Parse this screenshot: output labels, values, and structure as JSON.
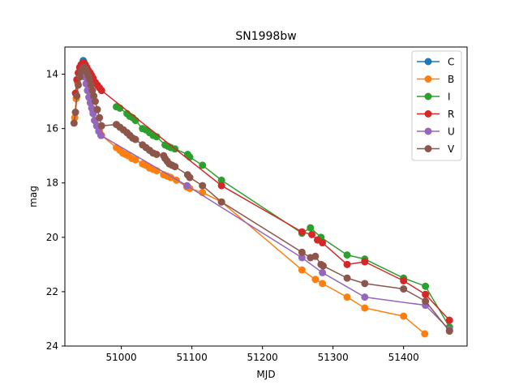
{
  "chart_data": {
    "type": "line",
    "title": "SN1998bw",
    "xlabel": "MJD",
    "ylabel": "mag",
    "xlim": [
      50920,
      51490
    ],
    "ylim": [
      24,
      13
    ],
    "y_inverted": true,
    "grid": false,
    "legend_position": "top-right",
    "x_ticks": [
      51000,
      51100,
      51200,
      51300,
      51400
    ],
    "x_tick_labels": [
      "51000",
      "51100",
      "51200",
      "51300",
      "51400"
    ],
    "y_ticks": [
      14,
      16,
      18,
      20,
      22,
      24
    ],
    "y_tick_labels": [
      "14",
      "16",
      "18",
      "20",
      "22",
      "24"
    ],
    "series": [
      {
        "name": "C",
        "color": "#1f77b4",
        "x": [
          50945,
          50946,
          50947,
          50948
        ],
        "y": [
          13.6,
          13.5,
          13.55,
          13.7
        ]
      },
      {
        "name": "B",
        "color": "#ff7f0e",
        "x": [
          50934,
          50936,
          50938,
          50940,
          50942,
          50944,
          50946,
          50948,
          50950,
          50952,
          50954,
          50956,
          50958,
          50960,
          50963,
          50966,
          50969,
          50972,
          50993,
          50998,
          51002,
          51006,
          51010,
          51015,
          51020,
          51030,
          51035,
          51040,
          51045,
          51050,
          51060,
          51065,
          51070,
          51078,
          51093,
          51097,
          51115,
          51142,
          51256,
          51275,
          51285,
          51320,
          51345,
          51400,
          51430
        ],
        "y": [
          15.6,
          14.9,
          14.3,
          14.0,
          13.85,
          13.8,
          13.85,
          13.95,
          14.1,
          14.3,
          14.5,
          14.75,
          15.0,
          15.4,
          15.7,
          15.9,
          16.1,
          16.25,
          16.7,
          16.8,
          16.9,
          16.95,
          17.0,
          17.1,
          17.15,
          17.3,
          17.35,
          17.45,
          17.5,
          17.55,
          17.7,
          17.75,
          17.8,
          17.9,
          18.15,
          18.2,
          18.35,
          18.7,
          21.2,
          21.55,
          21.7,
          22.2,
          22.6,
          22.9,
          23.55
        ]
      },
      {
        "name": "I",
        "color": "#2ca02c",
        "x": [
          50993,
          50998,
          51008,
          51012,
          51016,
          51020,
          51030,
          51035,
          51040,
          51045,
          51050,
          51062,
          51066,
          51070,
          51076,
          51094,
          51097,
          51115,
          51142,
          51256,
          51268,
          51283,
          51320,
          51345,
          51400,
          51431,
          51465
        ],
        "y": [
          15.2,
          15.25,
          15.45,
          15.55,
          15.6,
          15.7,
          16.0,
          16.05,
          16.15,
          16.25,
          16.3,
          16.6,
          16.65,
          16.7,
          16.75,
          16.95,
          17.05,
          17.35,
          17.9,
          19.85,
          19.65,
          20.0,
          20.65,
          20.8,
          21.5,
          21.8,
          23.3
        ]
      },
      {
        "name": "R",
        "color": "#d62728",
        "x": [
          50935,
          50937,
          50939,
          50941,
          50943,
          50945,
          50947,
          50949,
          50951,
          50953,
          50956,
          50958,
          50960,
          50963,
          50966,
          50969,
          50972,
          51142,
          51256,
          51270,
          51278,
          51285,
          51320,
          51345,
          51400,
          51431,
          51465
        ],
        "y": [
          14.7,
          14.2,
          13.95,
          13.75,
          13.65,
          13.6,
          13.6,
          13.65,
          13.75,
          13.85,
          13.95,
          14.05,
          14.15,
          14.3,
          14.4,
          14.5,
          14.6,
          18.1,
          19.8,
          19.9,
          20.1,
          20.2,
          21.0,
          20.9,
          21.6,
          22.1,
          23.05
        ]
      },
      {
        "name": "U",
        "color": "#9467bd",
        "x": [
          50946,
          50948,
          50950,
          50952,
          50954,
          50956,
          50958,
          50960,
          50962,
          50965,
          50968,
          50971,
          51093,
          51256,
          51285,
          51345,
          51431,
          51465
        ],
        "y": [
          13.9,
          14.1,
          14.35,
          14.6,
          14.85,
          15.05,
          15.25,
          15.45,
          15.7,
          15.9,
          16.1,
          16.25,
          18.1,
          20.75,
          21.3,
          22.2,
          22.5,
          23.4
        ]
      },
      {
        "name": "V",
        "color": "#8c564b",
        "x": [
          50933,
          50935,
          50937,
          50939,
          50941,
          50943,
          50945,
          50947,
          50949,
          50951,
          50953,
          50955,
          50957,
          50959,
          50961,
          50963,
          50966,
          50969,
          50972,
          50993,
          50998,
          51003,
          51008,
          51012,
          51016,
          51020,
          51030,
          51035,
          51040,
          51045,
          51050,
          51060,
          51062,
          51065,
          51068,
          51072,
          51076,
          51094,
          51097,
          51115,
          51142,
          51256,
          51268,
          51275,
          51283,
          51286,
          51320,
          51345,
          51400,
          51431,
          51465
        ],
        "y": [
          15.8,
          15.4,
          14.8,
          14.4,
          14.1,
          13.9,
          13.8,
          13.75,
          13.8,
          13.9,
          14.05,
          14.2,
          14.4,
          14.6,
          14.8,
          15.0,
          15.3,
          15.6,
          15.9,
          15.85,
          15.95,
          16.05,
          16.15,
          16.25,
          16.35,
          16.4,
          16.6,
          16.7,
          16.8,
          16.9,
          16.95,
          17.0,
          17.1,
          17.2,
          17.3,
          17.35,
          17.4,
          17.7,
          17.8,
          18.1,
          18.7,
          20.55,
          20.75,
          20.7,
          21.0,
          21.05,
          21.5,
          21.7,
          21.9,
          22.35,
          23.45
        ]
      }
    ]
  }
}
